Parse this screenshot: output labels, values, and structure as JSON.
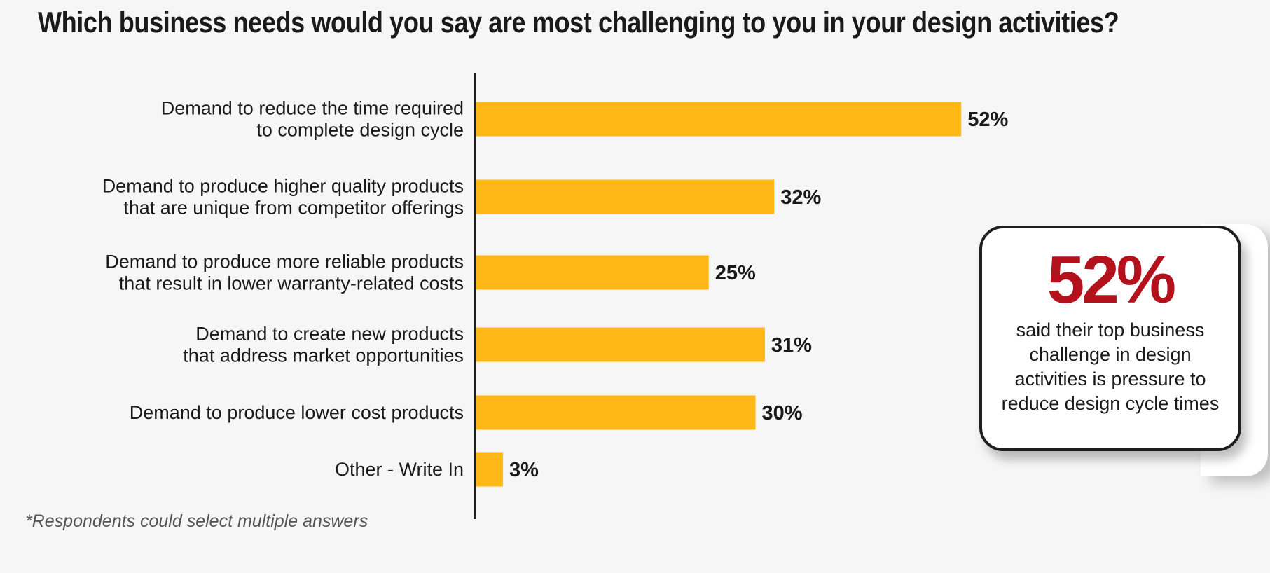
{
  "title": "Which business needs would you say are most challenging to you in your design activities?",
  "footnote": "*Respondents could select multiple answers",
  "callout": {
    "value": "52%",
    "text": "said their top business challenge in design activities is pressure to reduce design cycle times"
  },
  "colors": {
    "bar": "#ffb617",
    "accent": "#b3121c",
    "axis": "#1e1e1e"
  },
  "chart_data": {
    "type": "bar",
    "orientation": "horizontal",
    "categories": [
      [
        "Demand to reduce the time required",
        "to complete design cycle"
      ],
      [
        "Demand to produce higher quality products",
        "that are unique from competitor offerings"
      ],
      [
        "Demand to produce more reliable products",
        "that result in lower warranty-related costs"
      ],
      [
        "Demand to create new products",
        "that address market opportunities"
      ],
      [
        "Demand to produce lower cost products"
      ],
      [
        "Other - Write In"
      ]
    ],
    "values": [
      52,
      32,
      25,
      31,
      30,
      3
    ],
    "value_labels": [
      "52%",
      "32%",
      "25%",
      "31%",
      "30%",
      "3%"
    ],
    "xlim": [
      0,
      100
    ],
    "grid": false,
    "legend": "none"
  }
}
